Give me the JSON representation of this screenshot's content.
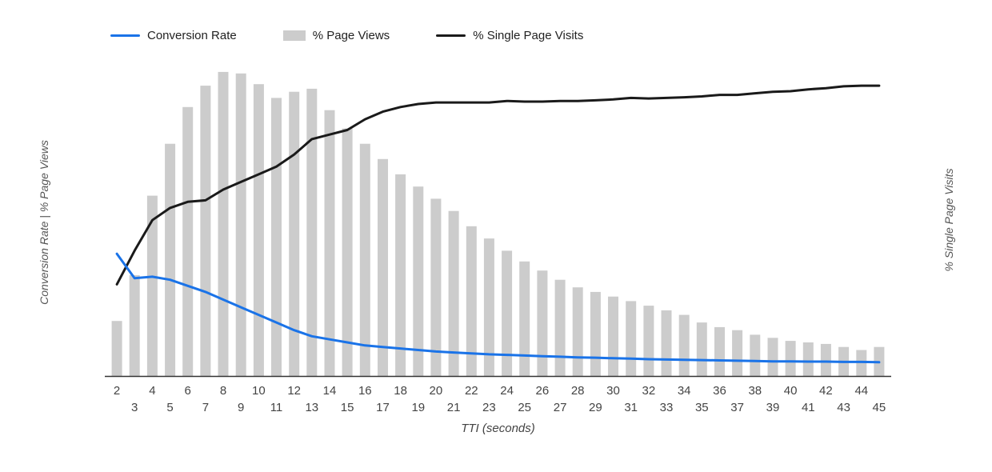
{
  "legend": {
    "items": [
      {
        "label": "Conversion Rate",
        "swatch": "line",
        "series": "Conversion Rate"
      },
      {
        "label": "% Page Views",
        "swatch": "bar",
        "series": "% Page Views"
      },
      {
        "label": "% Single Page Visits",
        "swatch": "line",
        "series": "% Single Page Visits"
      }
    ]
  },
  "axes": {
    "x_title": "TTI (seconds)",
    "y_left_title": "Conversion Rate | % Page Views",
    "y_right_title": "% Single Page Visits"
  },
  "colors": {
    "conversion_rate": "#1a73e8",
    "page_views": "#cccccc",
    "single_page_visits": "#1a1a1a",
    "axis_text": "#444444",
    "baseline": "#333333"
  },
  "chart_data": {
    "type": "combo",
    "title": "",
    "xlabel": "TTI (seconds)",
    "ylabel_left": "Conversion Rate | % Page Views",
    "ylabel_right": "% Single Page Visits",
    "ylim": [
      0,
      100
    ],
    "grid": false,
    "legend_position": "top",
    "x": [
      2,
      3,
      4,
      5,
      6,
      7,
      8,
      9,
      10,
      11,
      12,
      13,
      14,
      15,
      16,
      17,
      18,
      19,
      20,
      21,
      22,
      23,
      24,
      25,
      26,
      27,
      28,
      29,
      30,
      31,
      32,
      33,
      34,
      35,
      36,
      37,
      38,
      39,
      40,
      41,
      42,
      43,
      44,
      45
    ],
    "series": [
      {
        "name": "Conversion Rate",
        "type": "line",
        "color": "#1a73e8",
        "values": [
          40,
          32,
          32.5,
          31.5,
          29.5,
          27.5,
          25,
          22.5,
          20,
          17.5,
          15,
          13,
          12,
          11,
          10,
          9.5,
          9,
          8.5,
          8,
          7.7,
          7.4,
          7.1,
          6.9,
          6.7,
          6.5,
          6.3,
          6.1,
          6,
          5.8,
          5.7,
          5.5,
          5.4,
          5.3,
          5.2,
          5.1,
          5,
          4.9,
          4.8,
          4.8,
          4.7,
          4.7,
          4.6,
          4.6,
          4.5
        ]
      },
      {
        "name": "% Page Views",
        "type": "bar",
        "color": "#cccccc",
        "values": [
          18,
          33,
          59,
          76,
          88,
          95,
          99.5,
          99,
          95.5,
          91,
          93,
          94,
          87,
          81,
          76,
          71,
          66,
          62,
          58,
          54,
          49,
          45,
          41,
          37.5,
          34.5,
          31.5,
          29,
          27.5,
          26,
          24.5,
          23,
          21.5,
          20,
          17.5,
          16,
          15,
          13.5,
          12.5,
          11.5,
          11,
          10.5,
          9.5,
          8.5,
          9.5
        ]
      },
      {
        "name": "% Single Page Visits",
        "type": "line",
        "color": "#1a1a1a",
        "values": [
          30,
          41,
          51,
          55,
          57,
          57.5,
          61,
          63.5,
          66,
          68.5,
          72.5,
          77.5,
          79,
          80.5,
          84,
          86.5,
          88,
          89,
          89.5,
          89.5,
          89.5,
          89.5,
          90,
          89.8,
          89.8,
          90,
          90,
          90.2,
          90.5,
          91,
          90.8,
          91,
          91.2,
          91.5,
          92,
          92,
          92.5,
          93,
          93.2,
          93.8,
          94.2,
          94.8,
          95,
          95
        ]
      }
    ]
  }
}
